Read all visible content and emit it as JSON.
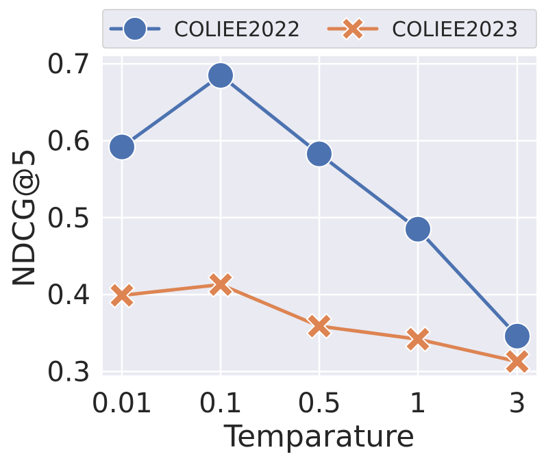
{
  "chart_data": {
    "type": "line",
    "title": "",
    "xlabel": "Temparature",
    "ylabel": "NDCG@5",
    "categories": [
      "0.01",
      "0.1",
      "0.5",
      "1",
      "3"
    ],
    "ylim": [
      0.295,
      0.71
    ],
    "yticks": [
      "0.3",
      "0.4",
      "0.5",
      "0.6",
      "0.7"
    ],
    "grid": true,
    "legend": "top",
    "series": [
      {
        "name": "COLIEE2022",
        "values": [
          0.592,
          0.685,
          0.583,
          0.485,
          0.346
        ],
        "color": "#4c72b0",
        "marker": "circle"
      },
      {
        "name": "COLIEE2023",
        "values": [
          0.399,
          0.413,
          0.359,
          0.342,
          0.313
        ],
        "color": "#dd8452",
        "marker": "x"
      }
    ]
  }
}
